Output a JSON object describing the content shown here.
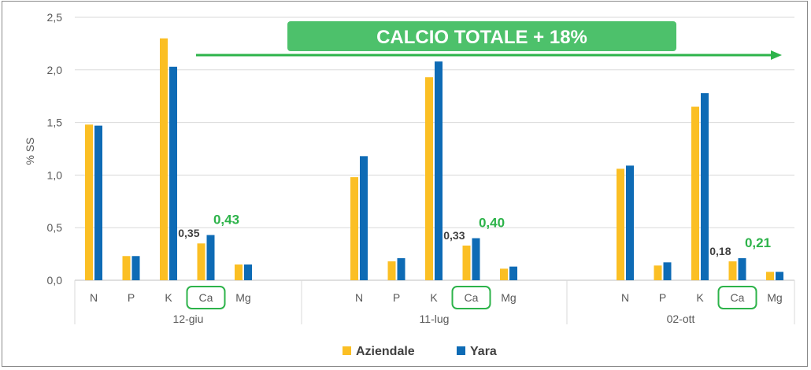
{
  "chart_data": {
    "type": "bar",
    "ylabel": "% SS",
    "ylim": [
      0,
      2.5
    ],
    "yticks": [
      "0,0",
      "0,5",
      "1,0",
      "1,5",
      "2,0",
      "2,5"
    ],
    "grid": true,
    "groups": [
      {
        "label": "12-giu",
        "categories": [
          "N",
          "P",
          "K",
          "Ca",
          "Mg"
        ],
        "aziendale": [
          1.48,
          0.23,
          2.3,
          0.35,
          0.15
        ],
        "yara": [
          1.47,
          0.23,
          2.03,
          0.43,
          0.15
        ],
        "ca_label_aziendale": "0,35",
        "ca_label_yara": "0,43"
      },
      {
        "label": "11-lug",
        "categories": [
          "N",
          "P",
          "K",
          "Ca",
          "Mg"
        ],
        "aziendale": [
          0.98,
          0.18,
          1.93,
          0.33,
          0.11
        ],
        "yara": [
          1.18,
          0.21,
          2.08,
          0.4,
          0.13
        ],
        "ca_label_aziendale": "0,33",
        "ca_label_yara": "0,40"
      },
      {
        "label": "02-ott",
        "categories": [
          "N",
          "P",
          "K",
          "Ca",
          "Mg"
        ],
        "aziendale": [
          1.06,
          0.14,
          1.65,
          0.18,
          0.08
        ],
        "yara": [
          1.09,
          0.17,
          1.78,
          0.21,
          0.08
        ],
        "ca_label_aziendale": "0,18",
        "ca_label_yara": "0,21"
      }
    ],
    "series": [
      {
        "name": "Aziendale",
        "color": "#fbbf24"
      },
      {
        "name": "Yara",
        "color": "#0e6bb5"
      }
    ],
    "highlight_category": "Ca",
    "highlight_color": "#2db34a",
    "annotation": "CALCIO TOTALE + 18%",
    "legend_position": "bottom-center"
  }
}
